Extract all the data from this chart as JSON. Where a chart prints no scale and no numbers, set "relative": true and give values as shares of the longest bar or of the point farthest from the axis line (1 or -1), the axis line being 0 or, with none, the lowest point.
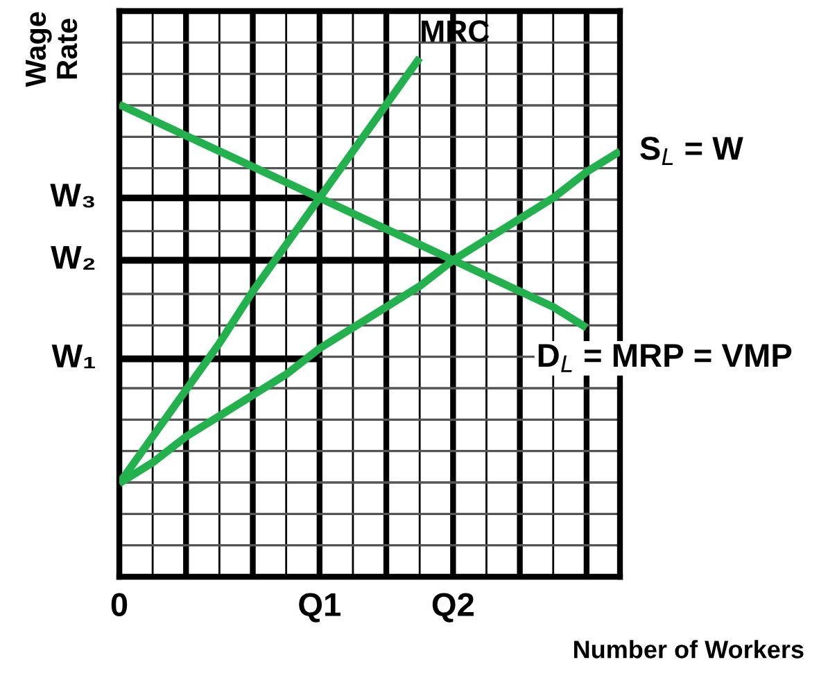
{
  "chart_data": {
    "type": "line",
    "xlabel": "Number of Workers",
    "ylabel": "Wage\nRate",
    "relative": true,
    "categories": [
      "0",
      null,
      null,
      null,
      null,
      null,
      "Q1",
      null,
      null,
      null,
      "Q2",
      null,
      null,
      null,
      null,
      null
    ],
    "grid": true,
    "marker": "none",
    "line_style": "solid",
    "annotations": [
      {
        "text": "W₃",
        "x": "0",
        "y": 0.73
      },
      {
        "text": "W₂",
        "x": "0",
        "y": 0.61
      },
      {
        "text": "W₁",
        "x": "0",
        "y": 0.42
      }
    ],
    "series": [
      {
        "name": "MRC",
        "color": "#22b14c",
        "values": [
          0.18,
          0.27,
          0.36,
          0.45,
          0.55,
          0.64,
          0.73,
          0.82,
          0.91,
          1.0,
          null,
          null,
          null,
          null,
          null,
          null
        ]
      },
      {
        "name": "S$_{L}$ = W",
        "color": "#22b14c",
        "values": [
          0.18,
          0.22,
          0.27,
          0.31,
          0.35,
          0.39,
          0.44,
          0.48,
          0.52,
          0.56,
          0.61,
          0.65,
          0.69,
          0.73,
          0.78,
          0.82
        ]
      },
      {
        "name": "D$_{L}$ = MRP = VMP",
        "color": "#22b14c",
        "values": [
          0.91,
          0.88,
          0.85,
          0.82,
          0.79,
          0.76,
          0.73,
          0.7,
          0.67,
          0.64,
          0.61,
          0.58,
          0.55,
          0.52,
          0.48,
          null
        ]
      },
      {
        "color": "#000000",
        "values": [
          0.73,
          0.73,
          0.73,
          0.73,
          0.73,
          0.73,
          0.73,
          null,
          null,
          null,
          null,
          null,
          null,
          null,
          null,
          null
        ]
      },
      {
        "color": "#000000",
        "values": [
          0.61,
          0.61,
          0.61,
          0.61,
          0.61,
          0.61,
          0.61,
          0.61,
          0.61,
          0.61,
          0.61,
          null,
          null,
          null,
          null,
          null
        ]
      },
      {
        "color": "#000000",
        "values": [
          0.42,
          0.42,
          0.42,
          0.42,
          0.42,
          0.42,
          0.42,
          null,
          null,
          null,
          null,
          null,
          null,
          null,
          null,
          null
        ]
      }
    ]
  }
}
